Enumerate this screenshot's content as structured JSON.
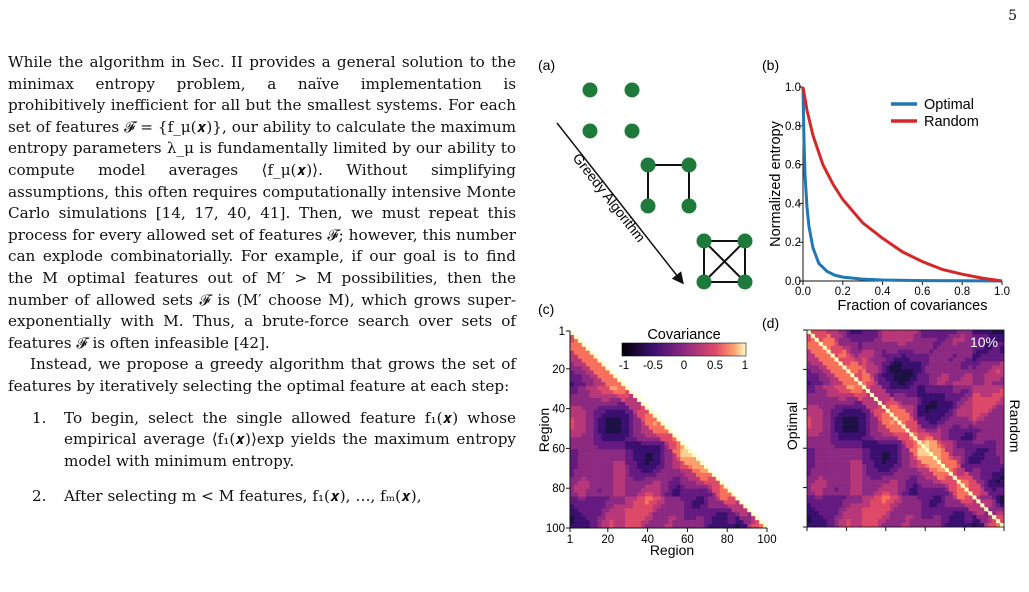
{
  "page_number": "5",
  "body": {
    "p1": "While the algorithm in Sec. II provides a general solution to the minimax entropy problem, a naïve implementation is prohibitively inefficient for all but the smallest systems. For each set of features 𝓕 = {f_μ(𝒙)}, our ability to calculate the maximum entropy parameters λ_μ is fundamentally limited by our ability to compute model averages ⟨f_μ(𝒙)⟩. Without simplifying assumptions, this often requires computationally intensive Monte Carlo simulations [14, 17, 40, 41]. Then, we must repeat this process for every allowed set of features 𝓕; however, this number can explode combinatorially. For example, if our goal is to find the M optimal features out of M′ > M possibilities, then the number of allowed sets 𝓕 is (M′ choose M), which grows super-exponentially with M. Thus, a brute-force search over sets of features 𝓕 is often infeasible [42].",
    "p2": "Instead, we propose a greedy algorithm that grows the set of features by iteratively selecting the optimal feature at each step:",
    "items": [
      {
        "num": "1.",
        "text": "To begin, select the single allowed feature f₁(𝒙) whose empirical average ⟨f₁(𝒙)⟩exp yields the maximum entropy model with minimum entropy."
      },
      {
        "num": "2.",
        "text": "After selecting m < M features, f₁(𝒙), …, fₘ(𝒙),"
      }
    ]
  },
  "figure": {
    "panel_labels": {
      "a": "(a)",
      "b": "(b)",
      "c": "(c)",
      "d": "(d)"
    },
    "panel_a": {
      "arrow_label": "Greedy Algorithm",
      "node_color": "#1e7a3a"
    },
    "panel_b": {
      "chart_data": {
        "type": "line",
        "xlabel": "Fraction of covariances",
        "ylabel": "Normalized entropy",
        "xlim": [
          0,
          1
        ],
        "ylim": [
          0,
          1
        ],
        "xticks": [
          "0.0",
          "0.2",
          "0.4",
          "0.6",
          "0.8",
          "1.0"
        ],
        "yticks": [
          "0.0",
          "0.2",
          "0.4",
          "0.6",
          "0.8",
          "1.0"
        ],
        "legend": "top-right",
        "series": [
          {
            "name": "Optimal",
            "color": "#1f77b4",
            "x": [
              0,
              0.005,
              0.01,
              0.02,
              0.03,
              0.05,
              0.08,
              0.12,
              0.16,
              0.2,
              0.3,
              0.4,
              0.6,
              0.8,
              1.0
            ],
            "y": [
              1.0,
              0.72,
              0.55,
              0.38,
              0.28,
              0.17,
              0.09,
              0.05,
              0.03,
              0.02,
              0.01,
              0.005,
              0.002,
              0.001,
              0
            ]
          },
          {
            "name": "Random",
            "color": "#d62728",
            "x": [
              0,
              0.02,
              0.05,
              0.1,
              0.15,
              0.2,
              0.3,
              0.4,
              0.5,
              0.6,
              0.7,
              0.8,
              0.9,
              1.0
            ],
            "y": [
              1.0,
              0.88,
              0.75,
              0.6,
              0.5,
              0.42,
              0.3,
              0.22,
              0.15,
              0.1,
              0.06,
              0.035,
              0.015,
              0
            ]
          }
        ]
      }
    },
    "panel_c": {
      "colorbar_title": "Covariance",
      "colorbar_ticks": [
        "-1",
        "-0.5",
        "0",
        "0.5",
        "1"
      ],
      "xlabel": "Region",
      "ylabel": "Region",
      "xticks": [
        "1",
        "20",
        "40",
        "60",
        "80",
        "100"
      ],
      "yticks": [
        "1",
        "20",
        "40",
        "60",
        "80",
        "100"
      ]
    },
    "panel_d": {
      "left_label": "Optimal",
      "right_label": "Random",
      "percent": "10%"
    }
  }
}
